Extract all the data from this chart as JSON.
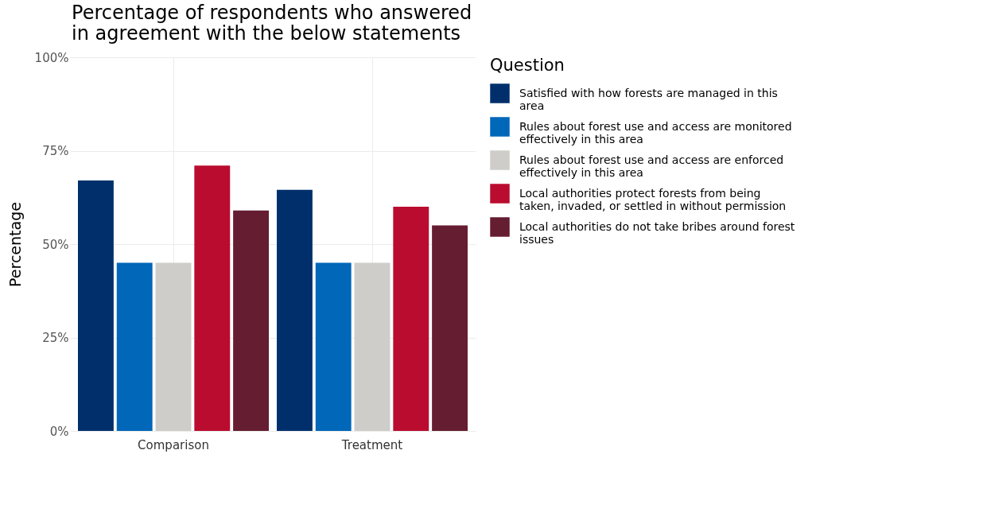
{
  "chart_data": {
    "type": "bar",
    "title": "Percentage of respondents who answered in agreement with the below statements",
    "categories": [
      "Comparison",
      "Treatment"
    ],
    "ylabel": "Percentage",
    "legend_title": "Question",
    "series": [
      {
        "name": "Satisfied with how forests are managed in this area",
        "color": "#002f6c",
        "values": [
          67,
          64.5
        ]
      },
      {
        "name": "Rules about forest use and access are monitored effectively in this area",
        "color": "#0067b9",
        "values": [
          45,
          45
        ]
      },
      {
        "name": "Rules about forest use and access are enforced effectively in this area",
        "color": "#cfcdc9",
        "values": [
          45,
          45
        ]
      },
      {
        "name": "Local authorities protect forests from being taken, invaded, or settled in without permission",
        "color": "#ba0c2f",
        "values": [
          71,
          60
        ]
      },
      {
        "name": "Local authorities do not take bribes around forest issues",
        "color": "#651d32",
        "values": [
          59,
          55
        ]
      }
    ],
    "ylim": [
      0,
      100
    ],
    "yticks": [
      {
        "value": 0,
        "label": "0%"
      },
      {
        "value": 25,
        "label": "25%"
      },
      {
        "value": 50,
        "label": "50%"
      },
      {
        "value": 75,
        "label": "75%"
      },
      {
        "value": 100,
        "label": "100%"
      }
    ],
    "grid": true,
    "legend": "right"
  }
}
